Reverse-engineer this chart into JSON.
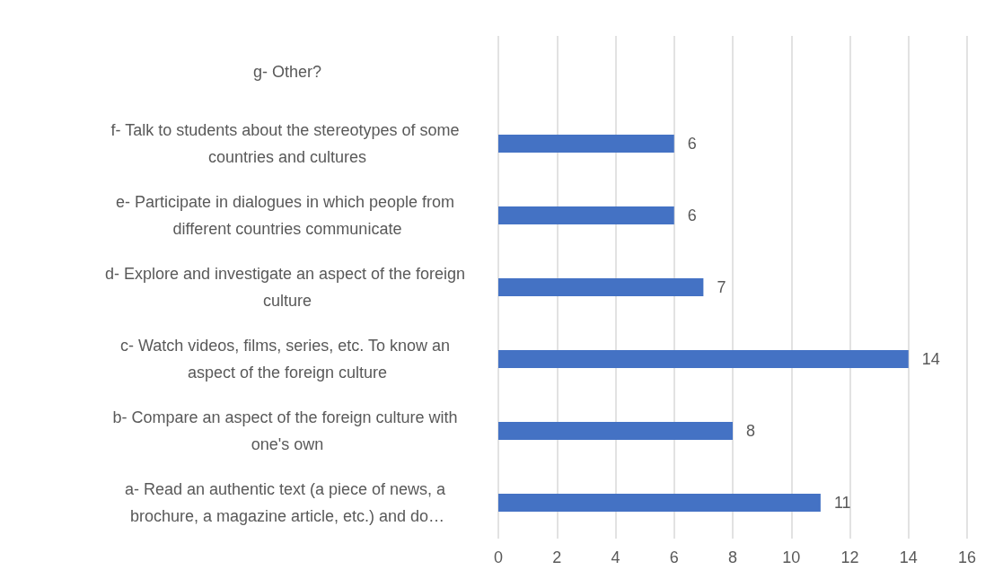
{
  "chart_data": {
    "type": "bar",
    "orientation": "horizontal",
    "categories": [
      "g- Other?",
      "f- Talk to students about the stereotypes of some countries and cultures",
      "e- Participate in dialogues in which people from different countries communicate",
      "d- Explore and investigate an aspect of the foreign culture",
      "c- Watch videos, films, series, etc. To know an aspect of the foreign culture",
      "b- Compare an aspect of the foreign culture with one's own",
      "a- Read an authentic text (a piece of news, a brochure, a magazine article, etc.) and do…"
    ],
    "values": [
      null,
      6,
      6,
      7,
      14,
      8,
      11
    ],
    "color": "#4472c4",
    "xlim": [
      0,
      16
    ],
    "xticks": [
      0,
      2,
      4,
      6,
      8,
      10,
      12,
      14,
      16
    ],
    "grid": "x",
    "data_labels": true
  }
}
